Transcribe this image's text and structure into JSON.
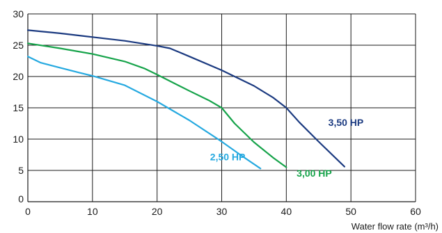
{
  "chart_data": {
    "type": "line",
    "title": "",
    "xlabel": "Water flow rate (m³/h)",
    "ylabel": "",
    "xlim": [
      0,
      60
    ],
    "ylim": [
      0,
      30
    ],
    "x_ticks": [
      0,
      10,
      20,
      30,
      40,
      50,
      60
    ],
    "y_ticks": [
      0,
      5,
      10,
      15,
      20,
      25,
      30
    ],
    "grid": true,
    "series": [
      {
        "name": "3,50 HP",
        "color": "#1b3a80",
        "label_anchor": [
          46.5,
          12.1
        ],
        "points": [
          [
            0,
            27.4
          ],
          [
            5,
            26.9
          ],
          [
            10,
            26.3
          ],
          [
            15,
            25.7
          ],
          [
            20,
            24.9
          ],
          [
            22,
            24.5
          ],
          [
            25,
            23.2
          ],
          [
            30,
            21.0
          ],
          [
            35,
            18.5
          ],
          [
            38,
            16.6
          ],
          [
            40,
            15.0
          ],
          [
            42,
            12.7
          ],
          [
            45,
            9.6
          ],
          [
            49,
            5.6
          ]
        ]
      },
      {
        "name": "3,00 HP",
        "color": "#16a34a",
        "label_anchor": [
          41.6,
          4.0
        ],
        "points": [
          [
            0,
            25.3
          ],
          [
            5,
            24.5
          ],
          [
            10,
            23.6
          ],
          [
            15,
            22.4
          ],
          [
            18,
            21.3
          ],
          [
            20,
            20.3
          ],
          [
            25,
            17.7
          ],
          [
            28,
            16.2
          ],
          [
            30,
            15.0
          ],
          [
            32,
            12.5
          ],
          [
            35,
            9.5
          ],
          [
            38,
            7.0
          ],
          [
            40,
            5.5
          ]
        ]
      },
      {
        "name": "2,50 HP",
        "color": "#25a9e0",
        "label_anchor": [
          28.2,
          6.6
        ],
        "points": [
          [
            0,
            23.2
          ],
          [
            2,
            22.2
          ],
          [
            5,
            21.4
          ],
          [
            8,
            20.6
          ],
          [
            10,
            20.1
          ],
          [
            15,
            18.6
          ],
          [
            20,
            16.0
          ],
          [
            25,
            13.0
          ],
          [
            30,
            9.6
          ],
          [
            33,
            7.4
          ],
          [
            36,
            5.3
          ]
        ]
      }
    ]
  }
}
